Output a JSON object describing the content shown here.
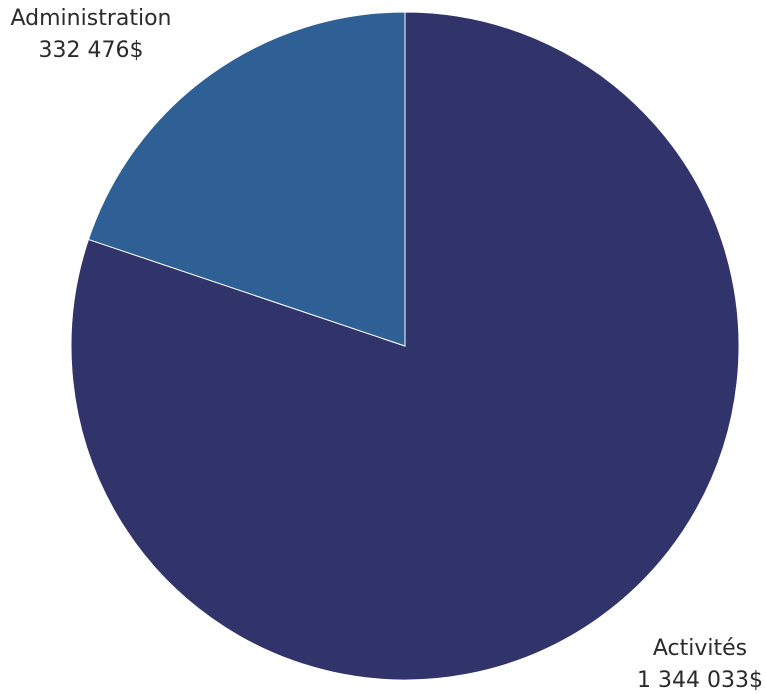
{
  "chart_data": {
    "type": "pie",
    "title": "",
    "start_angle_deg": 0,
    "direction": "clockwise",
    "slices": [
      {
        "label": "Activités",
        "value": 1344033,
        "value_label": "1 344 033$",
        "color": "#31346b"
      },
      {
        "label": "Administration",
        "value": 332476,
        "value_label": "332 476$",
        "color": "#2e6096"
      }
    ],
    "legend": "none",
    "slice_separator_color": "#ffffff"
  }
}
